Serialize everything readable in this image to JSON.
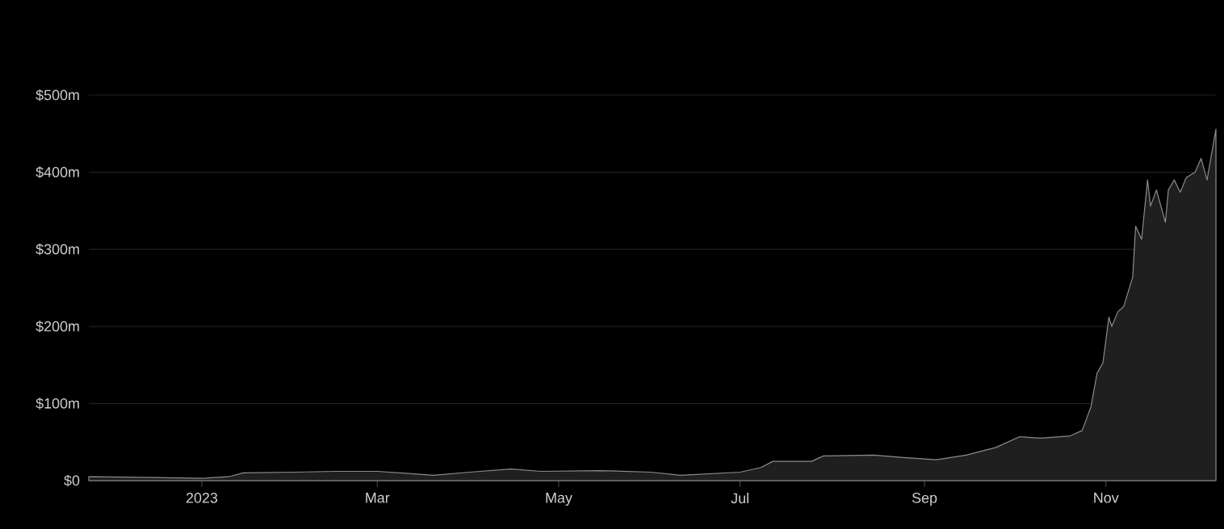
{
  "chart_data": {
    "type": "area",
    "color": "#8c8c8c",
    "x": [
      "2022-11-24",
      "2022-12-15",
      "2023-01-01",
      "2023-01-10",
      "2023-01-15",
      "2023-02-01",
      "2023-02-15",
      "2023-03-01",
      "2023-03-20",
      "2023-04-01",
      "2023-04-15",
      "2023-04-25",
      "2023-05-15",
      "2023-06-01",
      "2023-06-11",
      "2023-07-01",
      "2023-07-08",
      "2023-07-12",
      "2023-07-25",
      "2023-07-29",
      "2023-08-15",
      "2023-08-25",
      "2023-09-05",
      "2023-09-15",
      "2023-09-25",
      "2023-10-03",
      "2023-10-10",
      "2023-10-20",
      "2023-10-24",
      "2023-10-27",
      "2023-10-29",
      "2023-10-31",
      "2023-11-02",
      "2023-11-03",
      "2023-11-05",
      "2023-11-07",
      "2023-11-10",
      "2023-11-11",
      "2023-11-13",
      "2023-11-15",
      "2023-11-16",
      "2023-11-18",
      "2023-11-21",
      "2023-11-22",
      "2023-11-24",
      "2023-11-26",
      "2023-11-28",
      "2023-12-01",
      "2023-12-03",
      "2023-12-05",
      "2023-12-08"
    ],
    "values": [
      5,
      4,
      3,
      5,
      10,
      11,
      12,
      12,
      7,
      11,
      15,
      12,
      13,
      11,
      7,
      11,
      17,
      25,
      25,
      32,
      33,
      30,
      27,
      33,
      43,
      57,
      55,
      58,
      65,
      96,
      139,
      153,
      212,
      200,
      219,
      226,
      264,
      330,
      313,
      390,
      356,
      377,
      335,
      377,
      390,
      374,
      393,
      400,
      418,
      390,
      456
    ],
    "xlim": [
      "2022-11-24",
      "2023-12-08"
    ],
    "xticks": [
      {
        "value": "2023-01-01",
        "label": "2023"
      },
      {
        "value": "2023-03-01",
        "label": "Mar"
      },
      {
        "value": "2023-05-01",
        "label": "May"
      },
      {
        "value": "2023-07-01",
        "label": "Jul"
      },
      {
        "value": "2023-09-01",
        "label": "Sep"
      },
      {
        "value": "2023-11-01",
        "label": "Nov"
      }
    ],
    "ylim": [
      0,
      500
    ],
    "yticks": [
      {
        "value": 0,
        "label": "$0"
      },
      {
        "value": 100,
        "label": "$100m"
      },
      {
        "value": 200,
        "label": "$200m"
      },
      {
        "value": 300,
        "label": "$300m"
      },
      {
        "value": 400,
        "label": "$400m"
      },
      {
        "value": 500,
        "label": "$500m"
      }
    ],
    "grid": "y"
  }
}
